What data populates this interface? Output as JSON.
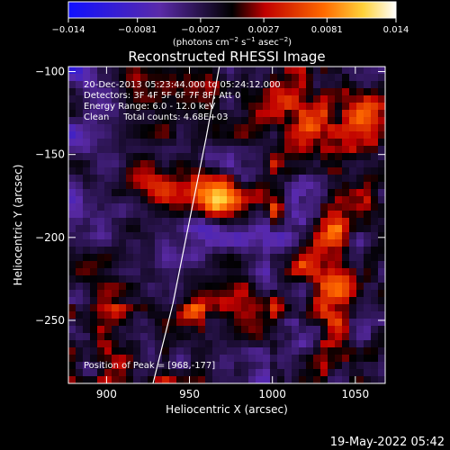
{
  "chart_data": {
    "type": "heatmap",
    "title": "Reconstructed RHESSI Image",
    "xlabel": "Heliocentric X (arcsec)",
    "ylabel": "Heliocentric Y (arcsec)",
    "xlim": [
      877,
      1068
    ],
    "ylim": [
      -288,
      -97
    ],
    "x_ticks": [
      900,
      950,
      1000,
      1050
    ],
    "y_ticks": [
      -100,
      -150,
      -200,
      -250
    ],
    "colorbar": {
      "range": [
        -0.014,
        0.014
      ],
      "tick_values": [
        -0.014,
        -0.0081,
        -0.0027,
        0.0027,
        0.0081,
        0.014
      ],
      "tick_labels": [
        "−0.014",
        "−0.0081",
        "−0.0027",
        "0.0027",
        "0.0081",
        "0.014"
      ],
      "unit_label_main": "(photons cm",
      "unit_exp1": "−2",
      "unit_mid1": " s",
      "unit_exp2": "−1",
      "unit_mid2": " asec",
      "unit_exp3": "−2",
      "unit_close": ")",
      "colors": [
        "#1010ff",
        "#5a2aa8",
        "#000000",
        "#c00000",
        "#ff6a00",
        "#ffd23a",
        "#ffffff"
      ]
    },
    "annotation_lines": [
      "20-Dec-2013 05:23:44.000 to 05:24:12.000",
      "Detectors: 3F 4F 5F 6F 7F 8F, Att 0",
      "Energy Range: 6.0 - 12.0 keV",
      "Clean     Total counts: 4.68E+03"
    ],
    "peak_label": "Position of Peak = [968,-177]",
    "peak_position": [
      968,
      -177
    ],
    "limb_points": [
      [
        968,
        -97
      ],
      [
        960,
        -140
      ],
      [
        950,
        -190
      ],
      [
        940,
        -240
      ],
      [
        928,
        -288
      ]
    ],
    "sources": [
      {
        "x": 968,
        "y": -177,
        "sx": 9,
        "sy": 9,
        "amp": 0.0135
      },
      {
        "x": 938,
        "y": -174,
        "sx": 18,
        "sy": 9,
        "amp": 0.0075
      },
      {
        "x": 958,
        "y": -163,
        "sx": 10,
        "sy": 7,
        "amp": 0.004
      }
    ],
    "background": -0.0035
  },
  "timestamp": "19-May-2022 05:42"
}
